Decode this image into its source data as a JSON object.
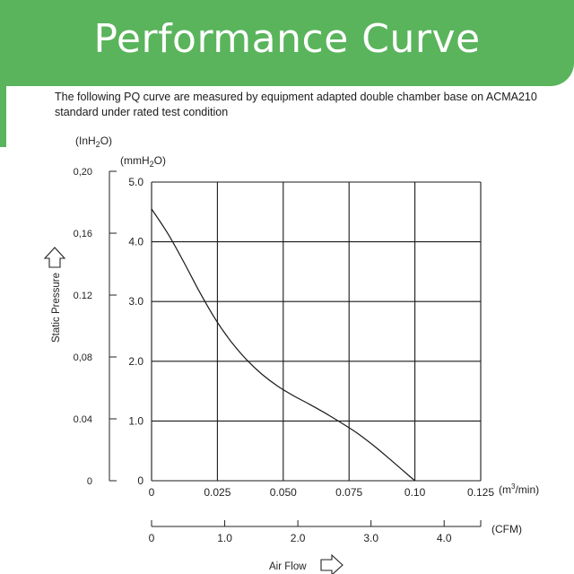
{
  "banner": {
    "title": "Performance Curve"
  },
  "description": "The following PQ curve are measured by equipment adapted double chamber base on ACMA210 standard under rated test condition",
  "colors": {
    "banner": "#5ab45c",
    "curve": "#1a1a1a",
    "grid": "#1a1a1a"
  },
  "chart_data": {
    "type": "line",
    "title": "",
    "ylabel": "Static Pressure",
    "xlabel": "Air Flow",
    "y_units": "(mmH2O)",
    "y2_units": "(InH2O)",
    "x_units": "(m3/min)",
    "x2_units": "(CFM)",
    "ylim": [
      0,
      5.0
    ],
    "xlim": [
      0,
      0.125
    ],
    "x2lim": [
      0,
      4.5
    ],
    "grid": true,
    "y_ticks": [
      "0",
      "1.0",
      "2.0",
      "3.0",
      "4.0",
      "5.0"
    ],
    "y2_ticks": [
      "0",
      "0.04",
      "0,08",
      "0.12",
      "0,16",
      "0,20"
    ],
    "x_ticks": [
      "0",
      "0.025",
      "0.050",
      "0.075",
      "0.10",
      "0.125"
    ],
    "x2_ticks": [
      "0",
      "1.0",
      "2.0",
      "3.0",
      "4.0"
    ],
    "series": [
      {
        "x": [
          0,
          0.006,
          0.012,
          0.018,
          0.024,
          0.03,
          0.036,
          0.042,
          0.048,
          0.054,
          0.06,
          0.066,
          0.072,
          0.078,
          0.084,
          0.09,
          0.096,
          0.1
        ],
        "values": [
          4.55,
          4.15,
          3.68,
          3.18,
          2.72,
          2.34,
          2.03,
          1.78,
          1.58,
          1.42,
          1.28,
          1.13,
          0.97,
          0.8,
          0.6,
          0.38,
          0.15,
          0
        ]
      }
    ]
  }
}
